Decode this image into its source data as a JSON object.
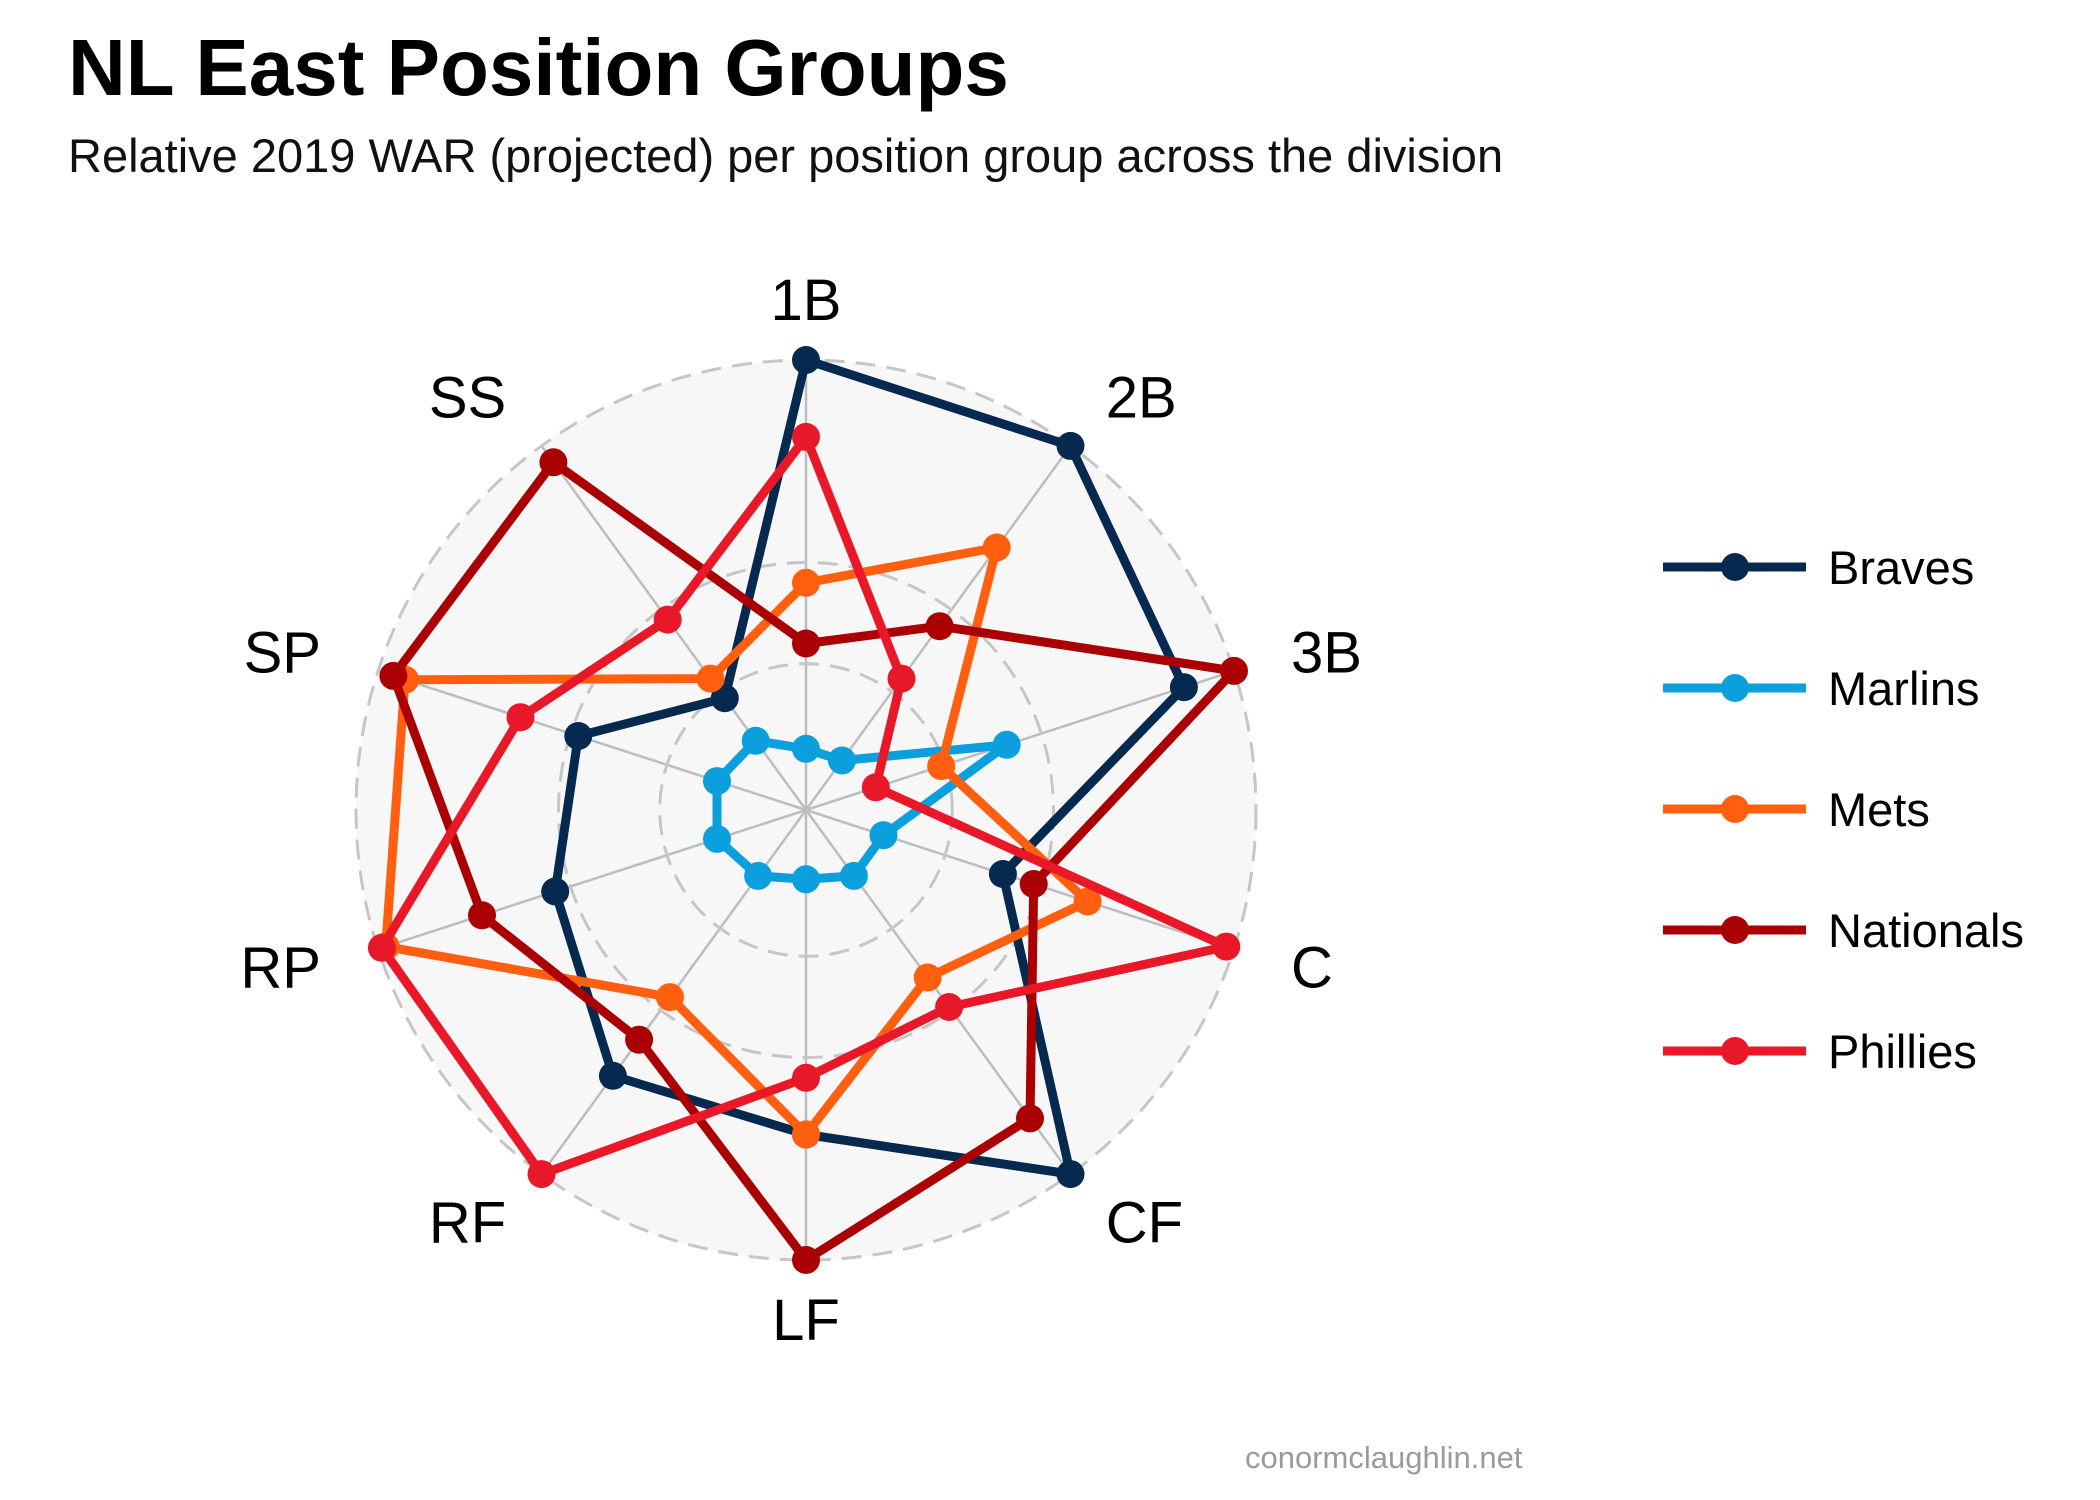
{
  "title": "NL East Position Groups",
  "subtitle": "Relative 2019 WAR (projected) per position group across the division",
  "credit": "conormclaughlin.net",
  "chart_data": {
    "type": "radar",
    "categories": [
      "1B",
      "2B",
      "3B",
      "C",
      "CF",
      "LF",
      "RF",
      "RP",
      "SP",
      "SS"
    ],
    "range": [
      0,
      1
    ],
    "grid": true,
    "legend_position": "right",
    "series": [
      {
        "name": "Braves",
        "color": "#06294f",
        "values": [
          1.0,
          1.0,
          0.87,
          0.4,
          1.0,
          0.69,
          0.7,
          0.54,
          0.48,
          0.23
        ]
      },
      {
        "name": "Marlins",
        "color": "#0b9fdd",
        "values": [
          0.04,
          0.04,
          0.41,
          0.09,
          0.09,
          0.06,
          0.09,
          0.12,
          0.12,
          0.1
        ]
      },
      {
        "name": "Mets",
        "color": "#ff5f0f",
        "values": [
          0.45,
          0.69,
          0.24,
          0.62,
          0.4,
          0.69,
          0.46,
          0.98,
          0.93,
          0.29
        ]
      },
      {
        "name": "Nationals",
        "color": "#ab0003",
        "values": [
          0.3,
          0.45,
          1.0,
          0.48,
          0.83,
          1.0,
          0.59,
          0.73,
          0.96,
          0.95
        ]
      },
      {
        "name": "Phillies",
        "color": "#e81828",
        "values": [
          0.81,
          0.29,
          0.07,
          0.98,
          0.49,
          0.55,
          1.0,
          0.99,
          0.63,
          0.47
        ]
      }
    ]
  }
}
